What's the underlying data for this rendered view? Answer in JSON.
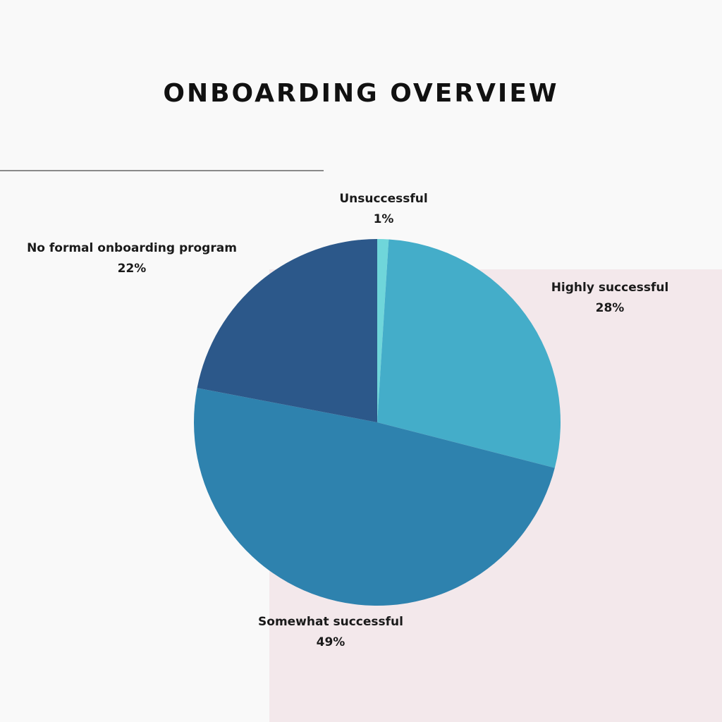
{
  "title": "ONBOARDING OVERVIEW",
  "colors": {
    "background": "#f9f9f9",
    "panel": "#f3e8eb",
    "title": "#111111"
  },
  "chart_data": {
    "type": "pie",
    "title": "ONBOARDING OVERVIEW",
    "start_angle_deg": 0,
    "direction": "clockwise",
    "slices": [
      {
        "label": "Unsuccessful",
        "value": 1,
        "value_label": "1%",
        "color": "#6fd6da"
      },
      {
        "label": "Highly successful",
        "value": 28,
        "value_label": "28%",
        "color": "#44adc9"
      },
      {
        "label": "Somewhat successful",
        "value": 49,
        "value_label": "49%",
        "color": "#2e82ae"
      },
      {
        "label": "No formal onboarding program",
        "value": 22,
        "value_label": "22%",
        "color": "#2c588a"
      }
    ],
    "legend": "none"
  }
}
